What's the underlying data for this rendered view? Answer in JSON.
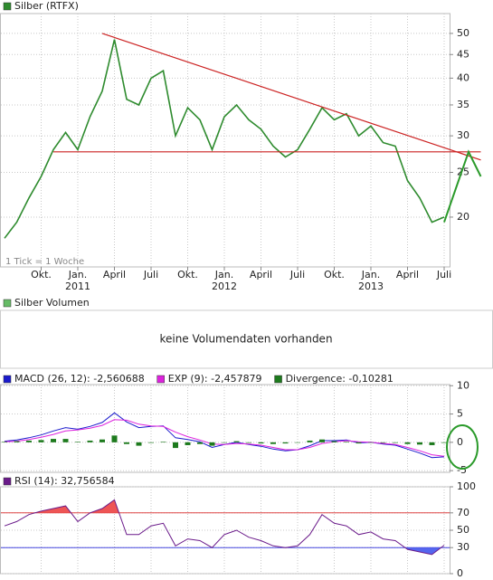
{
  "chart_data": [
    {
      "type": "line",
      "log_scale": true,
      "grid": true,
      "note": "1 Tick = 1 Woche",
      "x": [
        "2010-07",
        "2010-08",
        "2010-09",
        "2010-10",
        "2010-11",
        "2010-12",
        "2011-01",
        "2011-02",
        "2011-03",
        "2011-04",
        "2011-05",
        "2011-06",
        "2011-07",
        "2011-08",
        "2011-09",
        "2011-10",
        "2011-11",
        "2011-12",
        "2012-01",
        "2012-02",
        "2012-03",
        "2012-04",
        "2012-05",
        "2012-06",
        "2012-07",
        "2012-08",
        "2012-09",
        "2012-10",
        "2012-11",
        "2012-12",
        "2013-01",
        "2013-02",
        "2013-03",
        "2013-04",
        "2013-05",
        "2013-06",
        "2013-07"
      ],
      "series": [
        {
          "name": "Silber (RTFX)",
          "color": "#2e8b2e",
          "values": [
            18,
            19.5,
            22,
            24.5,
            28,
            30.5,
            28,
            33,
            37.5,
            48.5,
            36,
            35,
            40,
            41.5,
            30,
            34.5,
            32.5,
            28,
            33,
            35,
            32.5,
            31,
            28.5,
            27,
            28,
            31,
            34.5,
            32.5,
            33.5,
            30,
            31.5,
            29,
            28.5,
            24,
            22,
            19.5,
            20
          ]
        }
      ],
      "xlim": [
        "2010-07",
        "2013-10"
      ],
      "xticks": [
        {
          "value": "2010-10",
          "label": "Okt."
        },
        {
          "value": "2011-01",
          "label": "Jan."
        },
        {
          "value": "2011-04",
          "label": "April"
        },
        {
          "value": "2011-07",
          "label": "Juli"
        },
        {
          "value": "2011-10",
          "label": "Okt."
        },
        {
          "value": "2012-01",
          "label": "Jan."
        },
        {
          "value": "2012-04",
          "label": "April"
        },
        {
          "value": "2012-07",
          "label": "Juli"
        },
        {
          "value": "2012-10",
          "label": "Okt."
        },
        {
          "value": "2013-01",
          "label": "Jan."
        },
        {
          "value": "2013-04",
          "label": "April"
        },
        {
          "value": "2013-07",
          "label": "Juli"
        }
      ],
      "year_labels": [
        {
          "value": "2011-01",
          "label": "2011"
        },
        {
          "value": "2012-01",
          "label": "2012"
        },
        {
          "value": "2013-01",
          "label": "2013"
        }
      ],
      "ylim": [
        15.6,
        55.2
      ],
      "yticks": [
        20,
        25,
        30,
        35,
        40,
        45,
        50
      ],
      "trendlines": [
        {
          "color": "#cc2222",
          "points": [
            [
              "2011-03",
              50
            ],
            [
              "2013-10",
              26.6
            ]
          ]
        },
        {
          "color": "#cc2222",
          "points": [
            [
              "2010-11",
              27.7
            ],
            [
              "2013-10",
              27.7
            ]
          ]
        },
        {
          "color": "#2a9a2a",
          "points": [
            [
              "2013-07",
              19.5
            ],
            [
              "2013-09",
              27.7
            ],
            [
              "2013-10",
              24.5
            ]
          ]
        }
      ]
    },
    {
      "type": "message",
      "legend": "Silber Volumen",
      "legend_color": "#66bb66",
      "message": "keine Volumendaten vorhanden"
    },
    {
      "type": "line",
      "grid": true,
      "ylim": [
        -5.3,
        10.2
      ],
      "yticks": [
        -5,
        0,
        5,
        10
      ],
      "series": [
        {
          "name": "MACD (26, 12): -2,560688",
          "color": "#1a1acc",
          "values": [
            0.2,
            0.4,
            0.8,
            1.3,
            2.0,
            2.6,
            2.3,
            2.8,
            3.5,
            5.2,
            3.6,
            2.6,
            2.8,
            2.9,
            0.8,
            0.5,
            0.1,
            -0.9,
            -0.4,
            0.0,
            -0.4,
            -0.7,
            -1.2,
            -1.5,
            -1.3,
            -0.6,
            0.3,
            0.3,
            0.4,
            -0.1,
            0.0,
            -0.3,
            -0.5,
            -1.2,
            -1.9,
            -2.7,
            -2.56
          ]
        },
        {
          "name": "EXP (9): -2,457879",
          "color": "#dd22dd",
          "values": [
            0.1,
            0.2,
            0.5,
            0.9,
            1.4,
            2.0,
            2.2,
            2.5,
            3.0,
            4.0,
            3.9,
            3.2,
            2.9,
            2.8,
            1.8,
            1.0,
            0.4,
            -0.3,
            -0.4,
            -0.2,
            -0.3,
            -0.5,
            -0.9,
            -1.3,
            -1.3,
            -0.9,
            -0.2,
            0.1,
            0.3,
            0.1,
            0.0,
            -0.2,
            -0.4,
            -0.9,
            -1.5,
            -2.2,
            -2.46
          ]
        },
        {
          "name": "Divergence: -0,10281",
          "color": "#1d7a1d",
          "kind": "bar",
          "values": [
            0.1,
            0.2,
            0.3,
            0.4,
            0.6,
            0.6,
            0.1,
            0.3,
            0.5,
            1.2,
            -0.3,
            -0.6,
            -0.1,
            0.1,
            -1.0,
            -0.5,
            -0.3,
            -0.6,
            0.0,
            0.2,
            -0.1,
            -0.2,
            -0.3,
            -0.2,
            0.0,
            0.3,
            0.5,
            0.2,
            0.1,
            -0.2,
            0.0,
            -0.1,
            -0.1,
            -0.3,
            -0.4,
            -0.5,
            -0.1
          ]
        }
      ]
    },
    {
      "type": "line",
      "grid": true,
      "ylim": [
        0,
        100
      ],
      "yticks": [
        0,
        30,
        50,
        70,
        100
      ],
      "series": [
        {
          "name": "RSI (14): 32,756584",
          "color": "#6a1a8a",
          "values": [
            55,
            60,
            68,
            72,
            75,
            78,
            60,
            70,
            75,
            85,
            45,
            45,
            55,
            58,
            32,
            40,
            38,
            30,
            45,
            50,
            42,
            38,
            32,
            30,
            32,
            45,
            68,
            58,
            55,
            45,
            48,
            40,
            38,
            28,
            25,
            22,
            32.76
          ]
        }
      ],
      "hlines": [
        {
          "value": 70,
          "color": "#dd4444"
        },
        {
          "value": 30,
          "color": "#4444dd"
        }
      ],
      "bands": [
        {
          "above": 70,
          "color": "#ee5555"
        },
        {
          "below": 30,
          "color": "#5566ee"
        }
      ]
    }
  ]
}
